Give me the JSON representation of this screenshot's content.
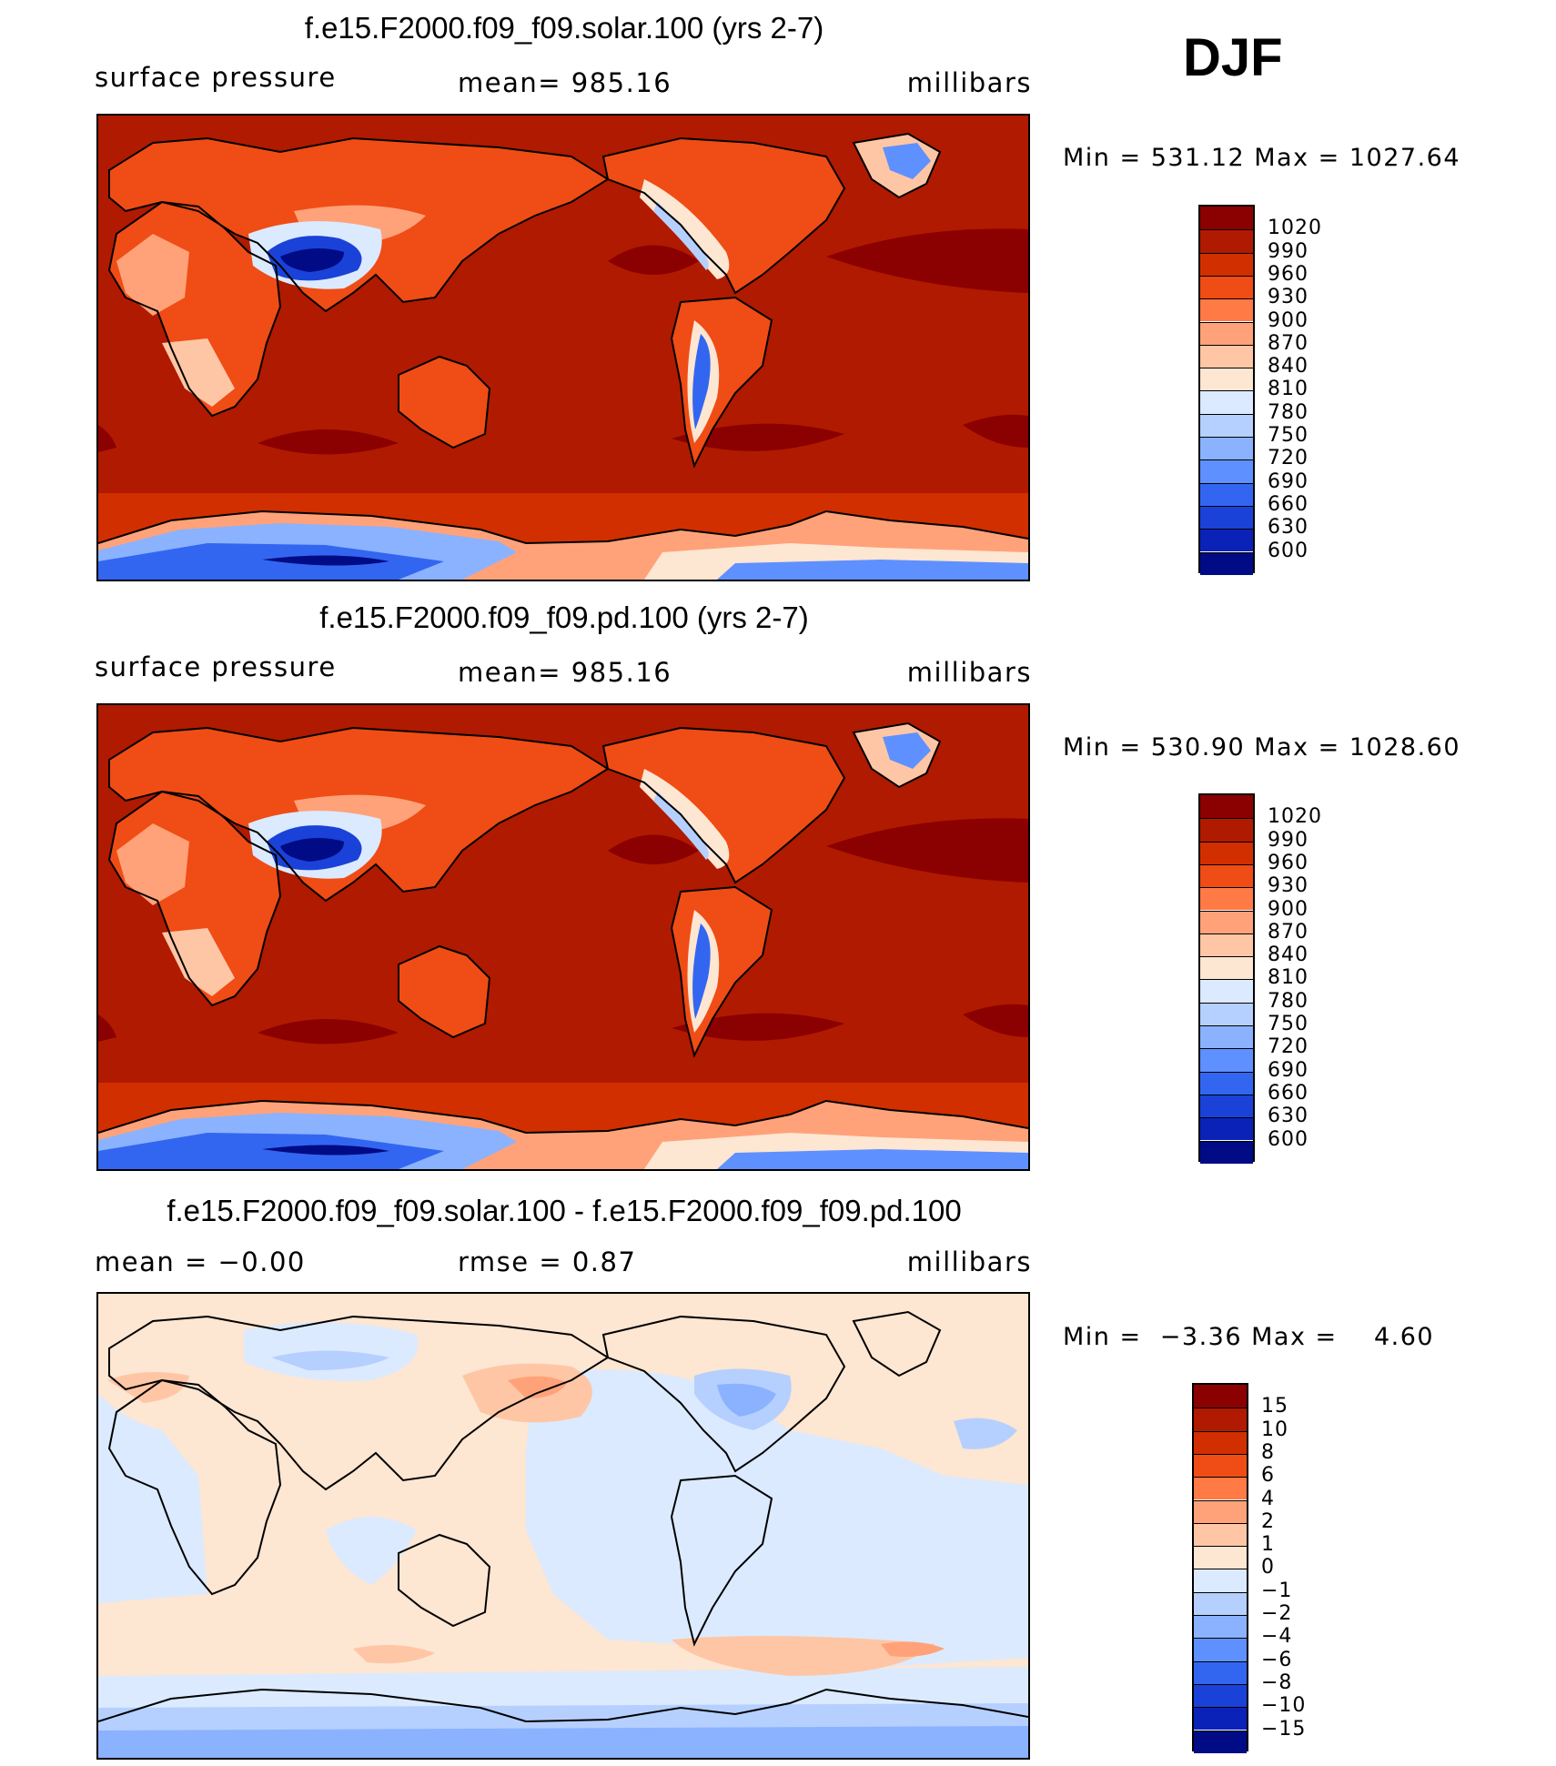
{
  "season": "DJF",
  "panels": [
    {
      "title": "f.e15.F2000.f09_f09.solar.100 (yrs 2-7)",
      "left": "surface pressure",
      "center": "mean= 985.16",
      "right": "millibars",
      "minmax": "Min = 531.12 Max = 1027.64",
      "kind": "abs"
    },
    {
      "title": "f.e15.F2000.f09_f09.pd.100 (yrs 2-7)",
      "left": "surface pressure",
      "center": "mean= 985.16",
      "right": "millibars",
      "minmax": "Min = 530.90 Max = 1028.60",
      "kind": "abs"
    },
    {
      "title": "f.e15.F2000.f09_f09.solar.100 - f.e15.F2000.f09_f09.pd.100",
      "left": "mean =   −0.00",
      "center": "rmse =    0.87",
      "right": "millibars",
      "minmax": "Min =  −3.36 Max =    4.60",
      "kind": "diff"
    }
  ],
  "colorbar_abs": {
    "labels": [
      "1020",
      "990",
      "960",
      "930",
      "900",
      "870",
      "840",
      "810",
      "780",
      "750",
      "720",
      "690",
      "660",
      "630",
      "600"
    ],
    "colors": [
      "#8b0000",
      "#b01a00",
      "#d12f00",
      "#f04c15",
      "#ff7a45",
      "#ffa27a",
      "#ffc6a5",
      "#fde6d2",
      "#dbeaff",
      "#b5d0ff",
      "#8ab2ff",
      "#5f90ff",
      "#3366f0",
      "#1a42d8",
      "#0a22b8",
      "#000b85"
    ]
  },
  "colorbar_diff": {
    "labels": [
      "15",
      "10",
      "8",
      "6",
      "4",
      "2",
      "1",
      "0",
      "−1",
      "−2",
      "−4",
      "−6",
      "−8",
      "−10",
      "−15"
    ],
    "colors": [
      "#8b0000",
      "#b01a00",
      "#d12f00",
      "#f04c15",
      "#ff7a45",
      "#ffa27a",
      "#ffc6a5",
      "#fde6d2",
      "#dbeaff",
      "#b5d0ff",
      "#8ab2ff",
      "#5f90ff",
      "#3366f0",
      "#1a42d8",
      "#0a22b8",
      "#000b85"
    ]
  }
}
